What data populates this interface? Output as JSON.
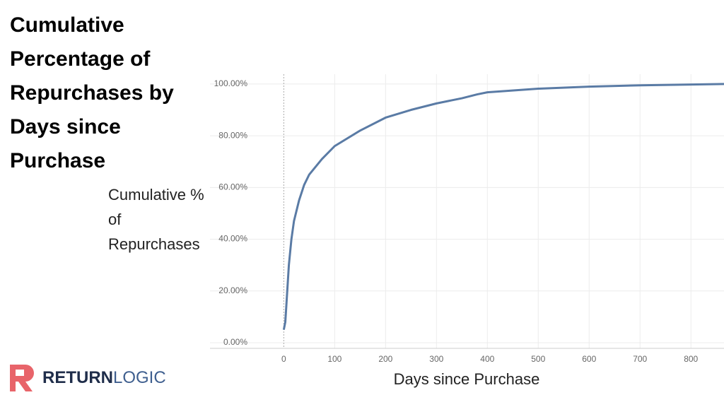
{
  "chart_data": {
    "type": "line",
    "title": "Cumulative Percentage of Repurchases by Days since Purchase",
    "y_label": "Cumulative % of Repurchases",
    "x_label": "Days since Purchase",
    "x": [
      0,
      3,
      10,
      15,
      20,
      30,
      40,
      50,
      75,
      100,
      150,
      200,
      250,
      300,
      350,
      380,
      400,
      500,
      600,
      700,
      800,
      865
    ],
    "values": [
      5,
      8,
      30,
      40,
      47,
      55,
      61,
      65,
      71,
      76,
      82,
      87,
      90,
      92.5,
      94.5,
      96,
      96.8,
      98.2,
      99,
      99.5,
      99.8,
      100
    ],
    "color": "#5a7ba5",
    "xlim": [
      -145,
      865
    ],
    "ylim": [
      -2.2,
      103.8
    ],
    "xticks": [
      0,
      100,
      200,
      300,
      400,
      500,
      600,
      700,
      800
    ],
    "yticks": [
      {
        "value": 0,
        "label": "0.00%"
      },
      {
        "value": 20,
        "label": "20.00%"
      },
      {
        "value": 40,
        "label": "40.00%"
      },
      {
        "value": 60,
        "label": "60.00%"
      },
      {
        "value": 80,
        "label": "80.00%"
      },
      {
        "value": 100,
        "label": "100.00%"
      }
    ],
    "grid": true
  },
  "logo": {
    "part1": "RETURN",
    "part2": "LOGIC"
  }
}
